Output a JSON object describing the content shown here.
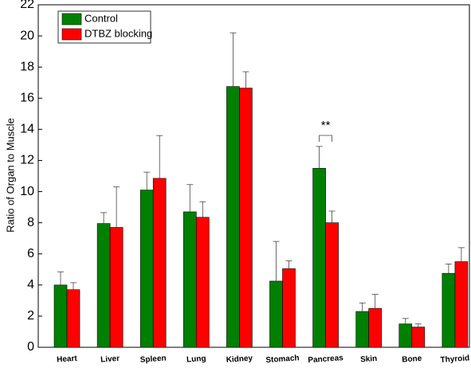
{
  "chart_data": {
    "type": "bar",
    "y_label": "Ratio of Organ to Muscle",
    "categories": [
      "Heart",
      "Liver",
      "Spleen",
      "Lung",
      "Kidney",
      "Stomach",
      "Pancreas",
      "Skin",
      "Bone",
      "Thyroid"
    ],
    "series": [
      {
        "name": "Control",
        "color": "#008000",
        "values": [
          4.0,
          7.95,
          10.1,
          8.7,
          16.75,
          4.25,
          11.5,
          2.3,
          1.5,
          4.75
        ],
        "errors": [
          0.85,
          0.7,
          1.15,
          1.75,
          3.45,
          2.55,
          1.4,
          0.55,
          0.35,
          0.6
        ]
      },
      {
        "name": "DTBZ blocking",
        "color": "#ff0000",
        "values": [
          3.7,
          7.7,
          10.85,
          8.35,
          16.65,
          5.05,
          8.0,
          2.5,
          1.3,
          5.5
        ],
        "errors": [
          0.45,
          2.6,
          2.75,
          1.0,
          1.05,
          0.5,
          0.75,
          0.9,
          0.2,
          0.9
        ]
      }
    ],
    "annotations": [
      "**"
    ],
    "ylim": [
      0,
      22
    ],
    "yticks": [
      0,
      2,
      4,
      6,
      8,
      10,
      12,
      14,
      16,
      18,
      20,
      22
    ],
    "legend": "upper left",
    "grid": false
  }
}
